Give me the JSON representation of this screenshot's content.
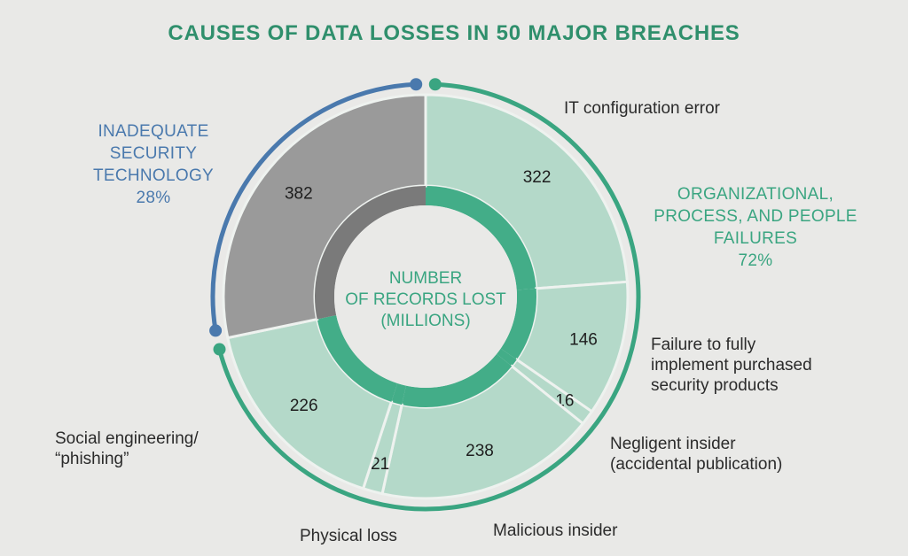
{
  "title": "CAUSES OF DATA LOSSES IN 50 MAJOR BREACHES",
  "center_label": [
    "NUMBER",
    "OF RECORDS LOST",
    "(MILLIONS)"
  ],
  "colors": {
    "background": "#e9e9e7",
    "title": "#2f8f6c",
    "tech_arc": "#4a79ad",
    "org_arc": "#3aa581",
    "tech_slice": "#9a9a9a",
    "org_slice": "#b4d9c9",
    "inner_ring_tech": "#7a7a7a",
    "inner_ring_org": "#43ad88",
    "center_fill": "#e9e9e7"
  },
  "groups": [
    {
      "name_lines": [
        "INADEQUATE",
        "SECURITY",
        "TECHNOLOGY"
      ],
      "percent": "28%",
      "color": "#4a79ad"
    },
    {
      "name_lines": [
        "ORGANIZATIONAL,",
        "PROCESS, AND PEOPLE",
        "FAILURES"
      ],
      "percent": "72%",
      "color": "#3aa581"
    }
  ],
  "category_labels": {
    "it_config": "IT configuration error",
    "failure": [
      "Failure to fully",
      "implement purchased",
      "security products"
    ],
    "negligent": [
      "Negligent insider",
      "(accidental publication)"
    ],
    "malicious": "Malicious insider",
    "physical": "Physical loss",
    "social": [
      "Social engineering/",
      "“phishing”"
    ]
  },
  "chart_data": {
    "type": "pie",
    "title": "CAUSES OF DATA LOSSES IN 50 MAJOR BREACHES",
    "value_unit": "records lost (millions)",
    "slices": [
      {
        "label": "IT configuration error",
        "value": 322,
        "group": "ORGANIZATIONAL, PROCESS, AND PEOPLE FAILURES"
      },
      {
        "label": "Failure to fully implement purchased security products",
        "value": 146,
        "group": "ORGANIZATIONAL, PROCESS, AND PEOPLE FAILURES"
      },
      {
        "label": "Negligent insider (accidental publication)",
        "value": 16,
        "group": "ORGANIZATIONAL, PROCESS, AND PEOPLE FAILURES"
      },
      {
        "label": "Malicious insider",
        "value": 238,
        "group": "ORGANIZATIONAL, PROCESS, AND PEOPLE FAILURES"
      },
      {
        "label": "Physical loss",
        "value": 21,
        "group": "ORGANIZATIONAL, PROCESS, AND PEOPLE FAILURES"
      },
      {
        "label": "Social engineering/“phishing”",
        "value": 226,
        "group": "ORGANIZATIONAL, PROCESS, AND PEOPLE FAILURES"
      },
      {
        "label": "",
        "value": 382,
        "group": "INADEQUATE SECURITY TECHNOLOGY"
      }
    ],
    "groups": [
      {
        "name": "INADEQUATE SECURITY TECHNOLOGY",
        "percent": 28
      },
      {
        "name": "ORGANIZATIONAL, PROCESS, AND PEOPLE FAILURES",
        "percent": 72
      }
    ]
  }
}
